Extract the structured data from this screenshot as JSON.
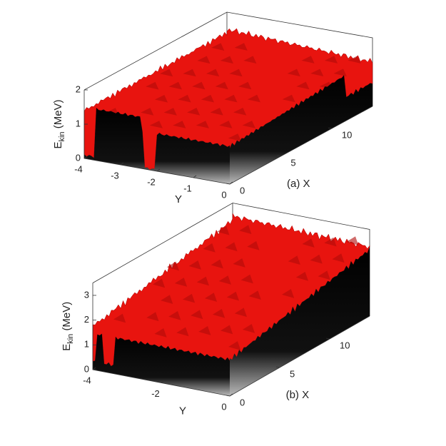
{
  "chart_data": [
    {
      "type": "surface",
      "panel": "(a)",
      "xlabel": "X",
      "ylabel": "Y",
      "zlabel": {
        "main": "E",
        "sub": "kin",
        "rest": "(MeV)"
      },
      "xlim": [
        0,
        14
      ],
      "xticks": [
        0,
        5,
        10
      ],
      "ylim": [
        -4,
        0
      ],
      "yticks": [
        -4,
        -3,
        -2,
        -1,
        0
      ],
      "zlim": [
        0,
        2
      ],
      "zticks": [
        0,
        1,
        2
      ],
      "color": "#e8140f"
    },
    {
      "type": "surface",
      "panel": "(b)",
      "xlabel": "X",
      "ylabel": "Y",
      "zlabel": {
        "main": "E",
        "sub": "kin",
        "rest": "(MeV)"
      },
      "xlim": [
        0,
        14
      ],
      "xticks": [
        0,
        5,
        10
      ],
      "ylim": [
        -4,
        0
      ],
      "yticks": [
        -4,
        -2,
        0
      ],
      "zlim": [
        0,
        3.5
      ],
      "zticks": [
        0,
        1,
        2,
        3
      ],
      "color": "#e8140f"
    }
  ]
}
